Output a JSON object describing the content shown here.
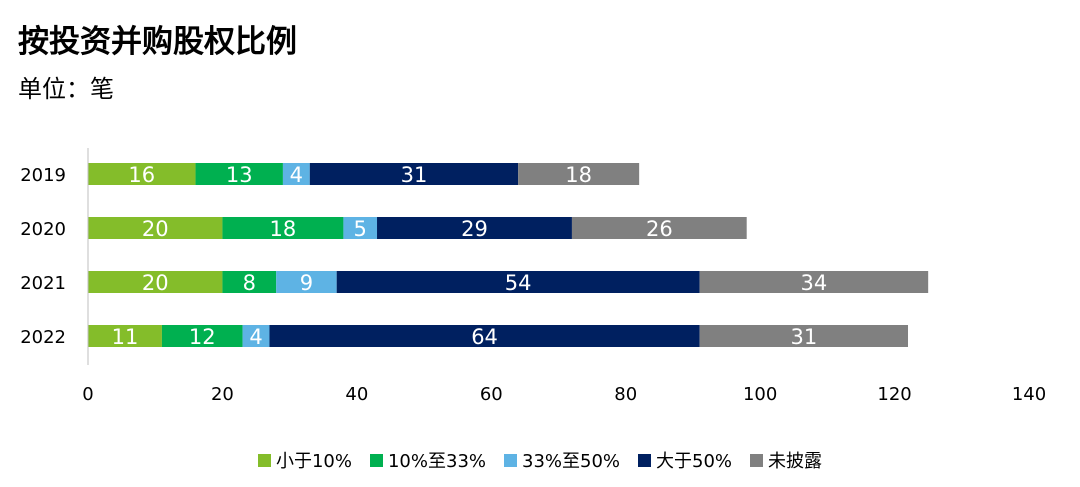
{
  "title": "按投资并购股权比例",
  "subtitle": "单位：笔",
  "chart_data": {
    "type": "bar",
    "orientation": "horizontal",
    "stacked": true,
    "categories": [
      "2019",
      "2020",
      "2021",
      "2022"
    ],
    "series": [
      {
        "name": "小于10%",
        "color": "#84BD2A",
        "values": [
          16,
          20,
          20,
          11
        ]
      },
      {
        "name": "10%至33%",
        "color": "#00B050",
        "values": [
          13,
          18,
          8,
          12
        ]
      },
      {
        "name": "33%至50%",
        "color": "#5EB3E4",
        "values": [
          4,
          5,
          9,
          4
        ]
      },
      {
        "name": "大于50%",
        "color": "#002060",
        "values": [
          31,
          29,
          54,
          64
        ]
      },
      {
        "name": "未披露",
        "color": "#808080",
        "values": [
          18,
          26,
          34,
          31
        ]
      }
    ],
    "xlim": [
      0,
      140
    ],
    "xticks": [
      0,
      20,
      40,
      60,
      80,
      100,
      120,
      140
    ],
    "data_labels": true,
    "grid": false,
    "legend_position": "bottom"
  }
}
